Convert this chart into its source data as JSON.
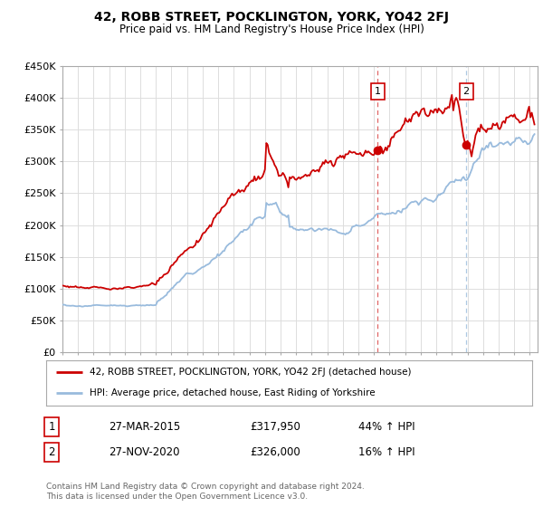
{
  "title": "42, ROBB STREET, POCKLINGTON, YORK, YO42 2FJ",
  "subtitle": "Price paid vs. HM Land Registry's House Price Index (HPI)",
  "ylabel_ticks": [
    "£0",
    "£50K",
    "£100K",
    "£150K",
    "£200K",
    "£250K",
    "£300K",
    "£350K",
    "£400K",
    "£450K"
  ],
  "ylim": [
    0,
    450000
  ],
  "xlim_start": 1995.0,
  "xlim_end": 2025.5,
  "red_line_color": "#cc0000",
  "blue_line_color": "#99bbdd",
  "transaction1_x": 2015.23,
  "transaction1_y": 317950,
  "transaction1_label": "1",
  "transaction1_date": "27-MAR-2015",
  "transaction1_price": "£317,950",
  "transaction1_hpi": "44% ↑ HPI",
  "transaction2_x": 2020.92,
  "transaction2_y": 326000,
  "transaction2_label": "2",
  "transaction2_date": "27-NOV-2020",
  "transaction2_price": "£326,000",
  "transaction2_hpi": "16% ↑ HPI",
  "legend_line1": "42, ROBB STREET, POCKLINGTON, YORK, YO42 2FJ (detached house)",
  "legend_line2": "HPI: Average price, detached house, East Riding of Yorkshire",
  "footer": "Contains HM Land Registry data © Crown copyright and database right 2024.\nThis data is licensed under the Open Government Licence v3.0.",
  "background_color": "#ffffff",
  "grid_color": "#dddddd"
}
